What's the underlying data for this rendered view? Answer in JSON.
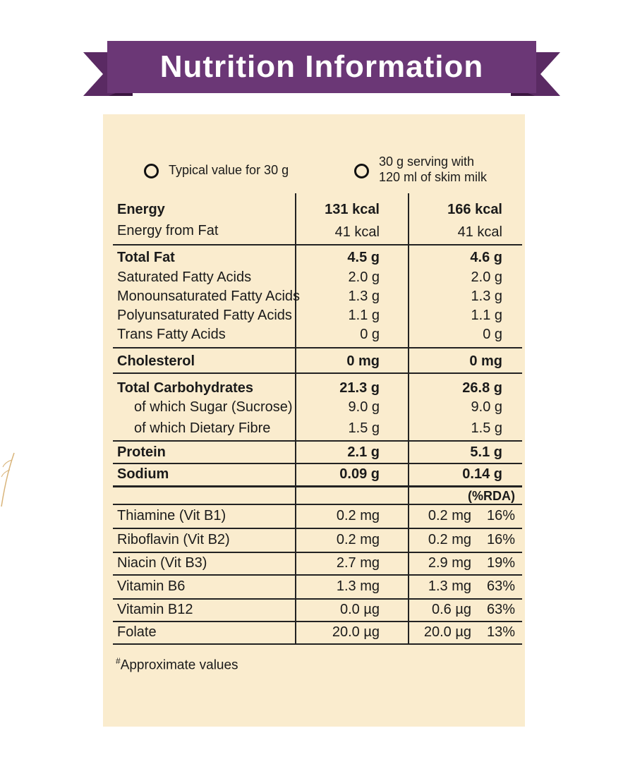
{
  "title": "Nutrition Information",
  "columns": {
    "col1": "Typical value for 30 g",
    "col2_line1": "30 g serving with",
    "col2_line2": "120 ml of skim milk",
    "rda": "(%RDA)"
  },
  "energy": {
    "label": "Energy",
    "c1": "131 kcal",
    "c2": "166 kcal",
    "fat_label": "Energy from Fat",
    "fat_c1": "41 kcal",
    "fat_c2": "41 kcal"
  },
  "fat": {
    "label": "Total Fat",
    "c1": "4.5 g",
    "c2": "4.6 g",
    "sub": [
      {
        "label": "Saturated Fatty Acids",
        "c1": "2.0 g",
        "c2": "2.0 g"
      },
      {
        "label": "Monounsaturated Fatty Acids",
        "c1": "1.3 g",
        "c2": "1.3 g"
      },
      {
        "label": "Polyunsaturated Fatty Acids",
        "c1": "1.1 g",
        "c2": "1.1 g"
      },
      {
        "label": "Trans Fatty Acids",
        "c1": "0 g",
        "c2": "0 g"
      }
    ]
  },
  "cholesterol": {
    "label": "Cholesterol",
    "c1": "0 mg",
    "c2": "0 mg"
  },
  "carbs": {
    "label": "Total Carbohydrates",
    "c1": "21.3 g",
    "c2": "26.8 g",
    "sub": [
      {
        "label": "of which Sugar (Sucrose)",
        "c1": "9.0 g",
        "c2": "9.0 g"
      },
      {
        "label": "of which Dietary Fibre",
        "c1": "1.5 g",
        "c2": "1.5 g"
      }
    ]
  },
  "protein": {
    "label": "Protein",
    "c1": "2.1 g",
    "c2": "5.1 g"
  },
  "sodium": {
    "label": "Sodium",
    "c1": "0.09 g",
    "c2": "0.14 g"
  },
  "vitamins": [
    {
      "label": "Thiamine (Vit B1)",
      "c1": "0.2 mg",
      "c2": "0.2 mg",
      "rda": "16%"
    },
    {
      "label": "Riboflavin (Vit B2)",
      "c1": "0.2 mg",
      "c2": "0.2 mg",
      "rda": "16%"
    },
    {
      "label": "Niacin (Vit B3)",
      "c1": "2.7 mg",
      "c2": "2.9 mg",
      "rda": "19%"
    },
    {
      "label": "Vitamin B6",
      "c1": "1.3 mg",
      "c2": "1.3 mg",
      "rda": "63%"
    },
    {
      "label": "Vitamin B12",
      "c1": "0.0 µg",
      "c2": "0.6 µg",
      "rda": "63%"
    },
    {
      "label": "Folate",
      "c1": "20.0 µg",
      "c2": "20.0 µg",
      "rda": "13%"
    }
  ],
  "footnote": {
    "mark": "#",
    "text": "Approximate values"
  },
  "colors": {
    "banner": "#6b3776",
    "panel": "#faecce",
    "text": "#1a1a1a"
  }
}
